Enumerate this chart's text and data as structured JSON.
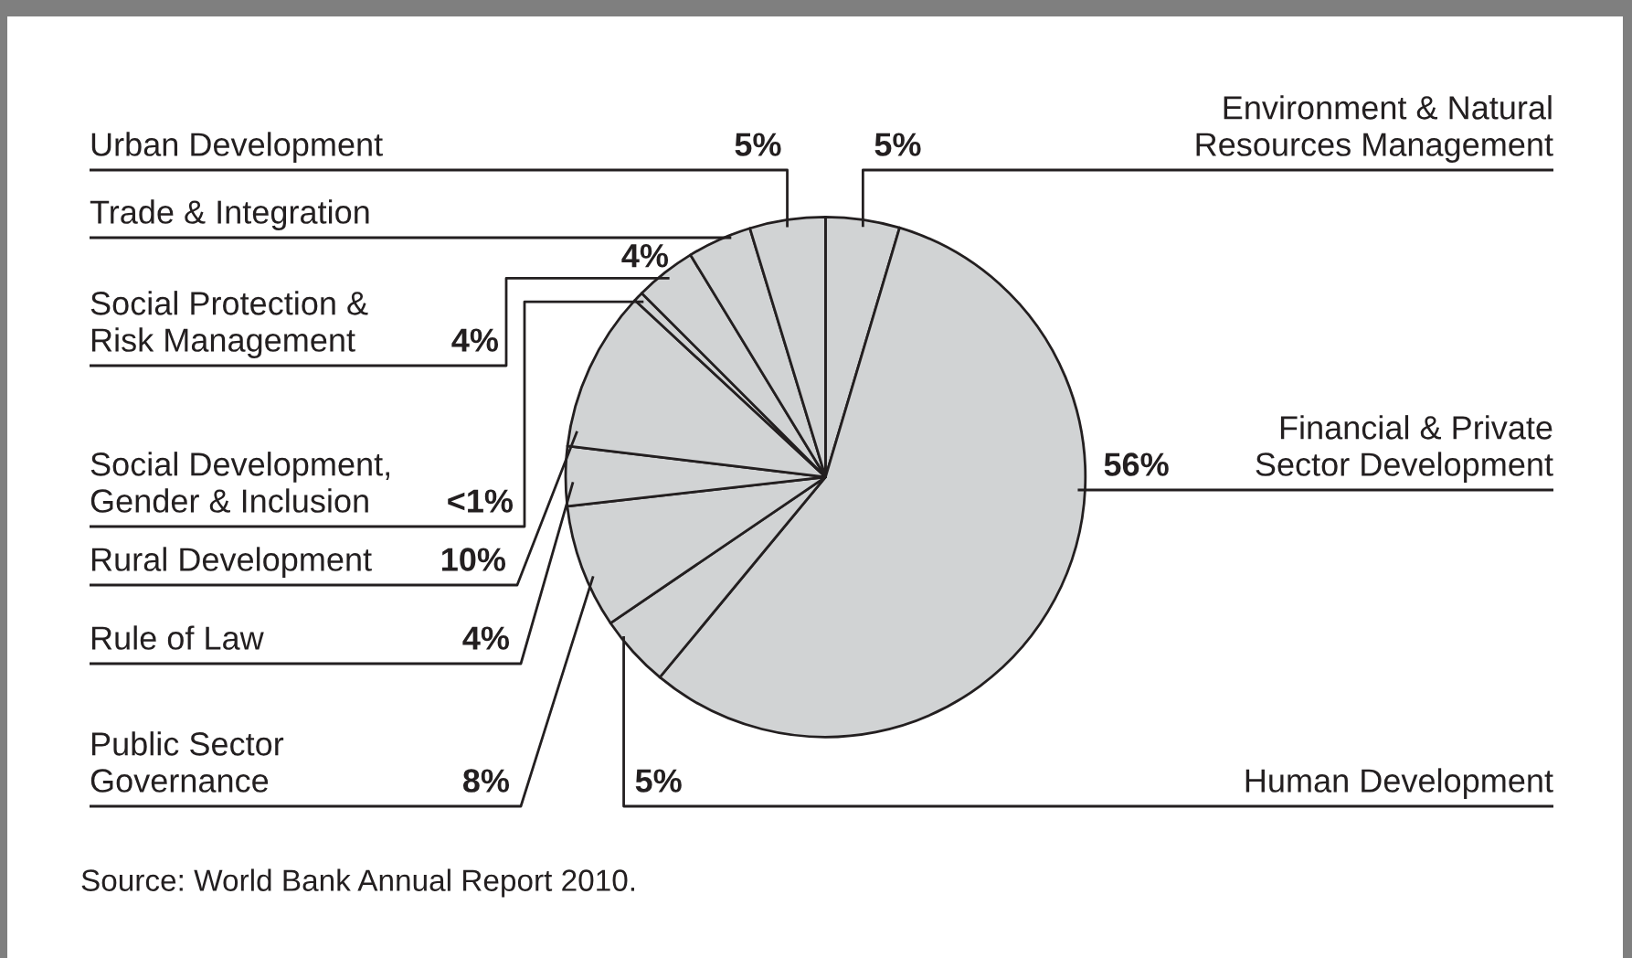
{
  "chart_data": {
    "type": "pie",
    "categories": [
      "Environment & Natural\nResources Management",
      "Financial & Private\nSector Development",
      "Human Development",
      "Public Sector\nGovernance",
      "Rule of Law",
      "Rural Development",
      "Social Development,\nGender & Inclusion",
      "Social Protection &\nRisk Management",
      "Trade & Integration",
      "Urban Development"
    ],
    "values": [
      4.6,
      56.4,
      4.5,
      7.7,
      3.7,
      10.0,
      0.6,
      3.8,
      4.0,
      4.7
    ],
    "value_labels": [
      "5%",
      "56%",
      "5%",
      "8%",
      "4%",
      "10%",
      "<1%",
      "4%",
      "4%",
      "5%"
    ],
    "colors": [
      "#d1d3d4",
      "#d1d3d4",
      "#d1d3d4",
      "#d1d3d4",
      "#d1d3d4",
      "#d1d3d4",
      "#d1d3d4",
      "#d1d3d4",
      "#d1d3d4",
      "#d1d3d4"
    ],
    "annotations": [
      "Source: World Bank Annual Report 2010."
    ]
  }
}
